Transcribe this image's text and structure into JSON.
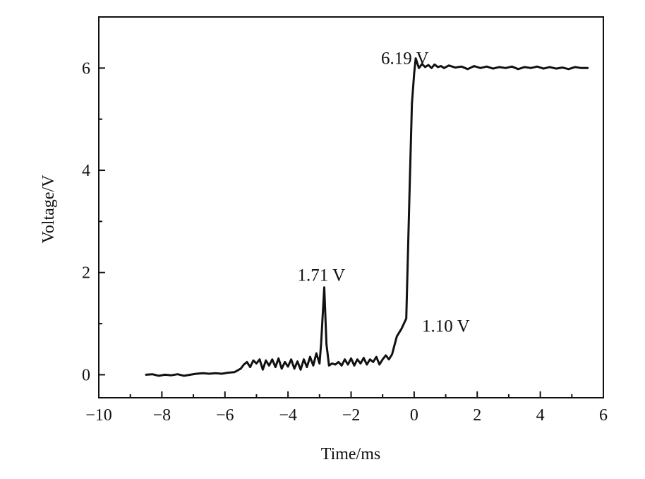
{
  "chart_data": {
    "type": "line",
    "xlabel": "Time/ms",
    "ylabel": "Voltage/V",
    "xlim": [
      -10,
      6
    ],
    "ylim": [
      -0.45,
      7.0
    ],
    "x_ticks": [
      -10,
      -8,
      -6,
      -4,
      -2,
      0,
      2,
      4,
      6
    ],
    "y_ticks": [
      0,
      2,
      4,
      6
    ],
    "x_tick_labels": [
      "−10",
      "−8",
      "−6",
      "−4",
      "−2",
      "0",
      "2",
      "4",
      "6"
    ],
    "y_tick_labels": [
      "0",
      "2",
      "4",
      "6"
    ],
    "grid": false,
    "legend": "none",
    "series": [
      {
        "color": "#111111",
        "points": [
          [
            -8.5,
            0.0
          ],
          [
            -8.3,
            0.01
          ],
          [
            -8.1,
            -0.02
          ],
          [
            -7.9,
            0.0
          ],
          [
            -7.7,
            -0.01
          ],
          [
            -7.5,
            0.01
          ],
          [
            -7.3,
            -0.02
          ],
          [
            -7.1,
            0.0
          ],
          [
            -6.9,
            0.02
          ],
          [
            -6.7,
            0.03
          ],
          [
            -6.5,
            0.02
          ],
          [
            -6.3,
            0.03
          ],
          [
            -6.1,
            0.02
          ],
          [
            -5.9,
            0.04
          ],
          [
            -5.7,
            0.05
          ],
          [
            -5.5,
            0.12
          ],
          [
            -5.4,
            0.2
          ],
          [
            -5.3,
            0.25
          ],
          [
            -5.2,
            0.15
          ],
          [
            -5.1,
            0.28
          ],
          [
            -5.0,
            0.22
          ],
          [
            -4.9,
            0.3
          ],
          [
            -4.8,
            0.1
          ],
          [
            -4.7,
            0.28
          ],
          [
            -4.6,
            0.18
          ],
          [
            -4.5,
            0.3
          ],
          [
            -4.4,
            0.15
          ],
          [
            -4.3,
            0.32
          ],
          [
            -4.2,
            0.12
          ],
          [
            -4.1,
            0.25
          ],
          [
            -4.0,
            0.16
          ],
          [
            -3.9,
            0.3
          ],
          [
            -3.8,
            0.12
          ],
          [
            -3.7,
            0.26
          ],
          [
            -3.6,
            0.1
          ],
          [
            -3.5,
            0.3
          ],
          [
            -3.4,
            0.15
          ],
          [
            -3.3,
            0.35
          ],
          [
            -3.2,
            0.18
          ],
          [
            -3.1,
            0.42
          ],
          [
            -3.0,
            0.22
          ],
          [
            -2.95,
            0.6
          ],
          [
            -2.85,
            1.71
          ],
          [
            -2.78,
            0.6
          ],
          [
            -2.7,
            0.18
          ],
          [
            -2.6,
            0.22
          ],
          [
            -2.5,
            0.2
          ],
          [
            -2.4,
            0.25
          ],
          [
            -2.3,
            0.18
          ],
          [
            -2.2,
            0.3
          ],
          [
            -2.1,
            0.2
          ],
          [
            -2.0,
            0.32
          ],
          [
            -1.9,
            0.18
          ],
          [
            -1.8,
            0.3
          ],
          [
            -1.7,
            0.22
          ],
          [
            -1.6,
            0.33
          ],
          [
            -1.5,
            0.2
          ],
          [
            -1.4,
            0.3
          ],
          [
            -1.3,
            0.25
          ],
          [
            -1.2,
            0.35
          ],
          [
            -1.1,
            0.2
          ],
          [
            -1.0,
            0.3
          ],
          [
            -0.9,
            0.38
          ],
          [
            -0.8,
            0.3
          ],
          [
            -0.7,
            0.4
          ],
          [
            -0.55,
            0.75
          ],
          [
            -0.4,
            0.9
          ],
          [
            -0.25,
            1.1
          ],
          [
            -0.15,
            3.5
          ],
          [
            -0.07,
            5.3
          ],
          [
            0.0,
            5.9
          ],
          [
            0.05,
            6.19
          ],
          [
            0.15,
            6.0
          ],
          [
            0.25,
            6.08
          ],
          [
            0.35,
            6.02
          ],
          [
            0.45,
            6.06
          ],
          [
            0.55,
            6.0
          ],
          [
            0.65,
            6.07
          ],
          [
            0.75,
            6.02
          ],
          [
            0.85,
            6.04
          ],
          [
            0.95,
            6.0
          ],
          [
            1.1,
            6.05
          ],
          [
            1.3,
            6.01
          ],
          [
            1.5,
            6.03
          ],
          [
            1.7,
            5.98
          ],
          [
            1.9,
            6.04
          ],
          [
            2.1,
            6.0
          ],
          [
            2.3,
            6.03
          ],
          [
            2.5,
            5.99
          ],
          [
            2.7,
            6.02
          ],
          [
            2.9,
            6.0
          ],
          [
            3.1,
            6.03
          ],
          [
            3.3,
            5.98
          ],
          [
            3.5,
            6.02
          ],
          [
            3.7,
            6.0
          ],
          [
            3.9,
            6.03
          ],
          [
            4.1,
            5.99
          ],
          [
            4.3,
            6.02
          ],
          [
            4.5,
            5.99
          ],
          [
            4.7,
            6.01
          ],
          [
            4.9,
            5.98
          ],
          [
            5.1,
            6.02
          ],
          [
            5.3,
            6.0
          ],
          [
            5.5,
            6.0
          ]
        ]
      }
    ],
    "annotations": [
      {
        "text": "6.19 V",
        "x": -1.05,
        "y": 6.19
      },
      {
        "text": "1.71 V",
        "x": -3.7,
        "y": 1.95
      },
      {
        "text": "1.10 V",
        "x": 0.25,
        "y": 0.95
      }
    ]
  }
}
